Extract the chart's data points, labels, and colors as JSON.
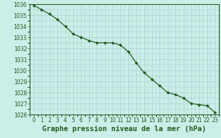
{
  "x": [
    0,
    1,
    2,
    3,
    4,
    5,
    6,
    7,
    8,
    9,
    10,
    11,
    12,
    13,
    14,
    15,
    16,
    17,
    18,
    19,
    20,
    21,
    22,
    23
  ],
  "y": [
    1035.9,
    1035.5,
    1035.1,
    1034.6,
    1034.0,
    1033.3,
    1033.0,
    1032.7,
    1032.5,
    1032.5,
    1032.5,
    1032.3,
    1031.7,
    1030.7,
    1029.8,
    1029.2,
    1028.6,
    1028.0,
    1027.8,
    1027.5,
    1027.0,
    1026.9,
    1026.8,
    1026.2
  ],
  "line_color": "#1e5c1e",
  "marker": "D",
  "marker_size": 2.2,
  "background_color": "#cceee8",
  "grid_color": "#aacccc",
  "xlabel": "Graphe pression niveau de la mer (hPa)",
  "xlabel_fontsize": 7.5,
  "ylim": [
    1026,
    1036
  ],
  "xlim_min": -0.5,
  "xlim_max": 23.5,
  "ytick_interval": 1,
  "xtick_labels": [
    "0",
    "1",
    "2",
    "3",
    "4",
    "5",
    "6",
    "7",
    "8",
    "9",
    "10",
    "11",
    "12",
    "13",
    "14",
    "15",
    "16",
    "17",
    "18",
    "19",
    "20",
    "21",
    "22",
    "23"
  ],
  "tick_fontsize": 5.5,
  "tick_color": "#1e5c1e",
  "spine_color": "#1e5c1e",
  "linewidth": 0.9
}
